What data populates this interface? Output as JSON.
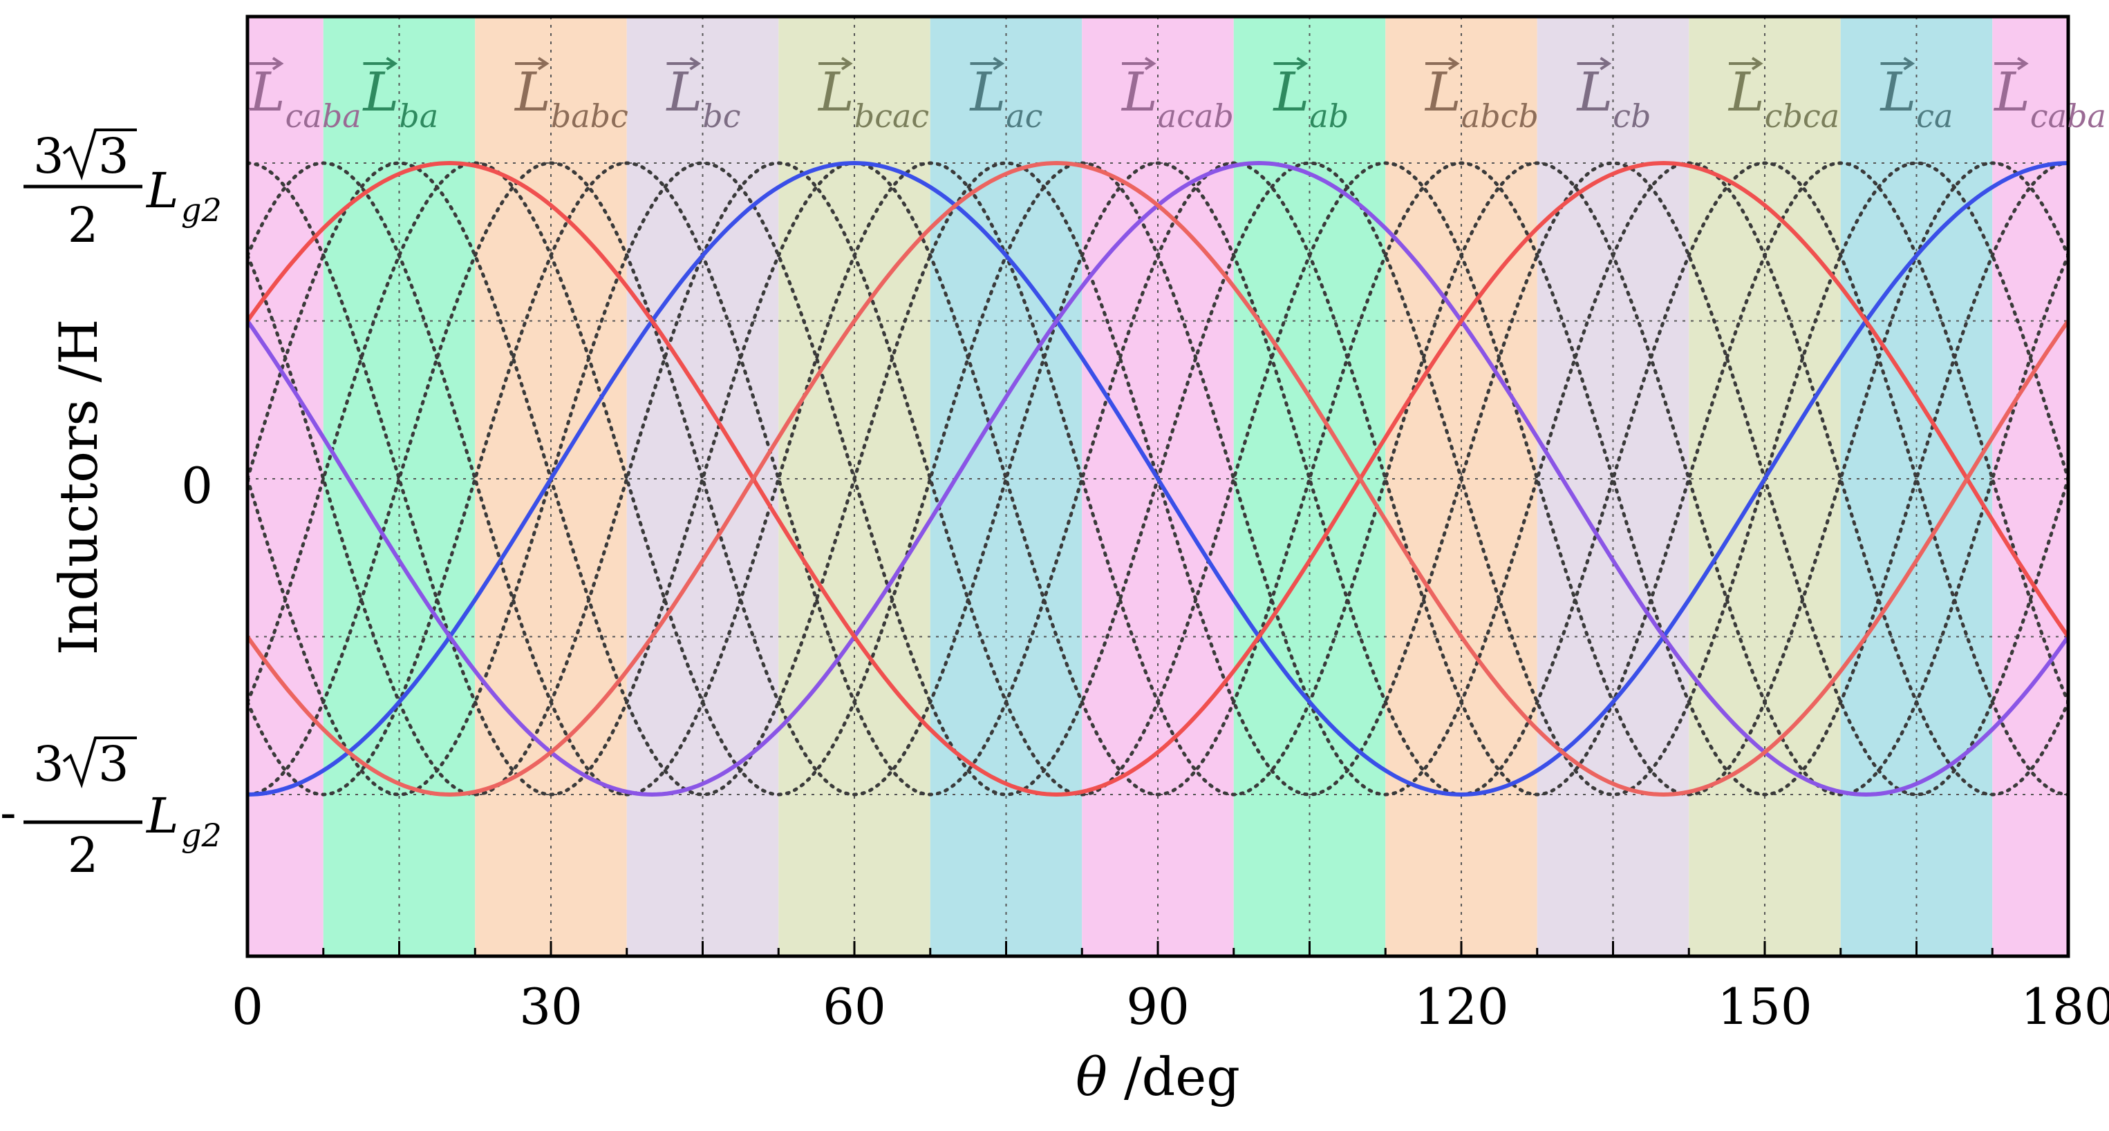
{
  "chart_data": {
    "type": "line",
    "title": "",
    "xlabel_symbol": "θ",
    "xlabel_unit": " /deg",
    "ylabel": "Inductors /H",
    "xlim": [
      0,
      180
    ],
    "ylim": [
      -1.5,
      1.5
    ],
    "x_ticks": [
      {
        "value": 0,
        "label": "0"
      },
      {
        "value": 30,
        "label": "30"
      },
      {
        "value": 60,
        "label": "60"
      },
      {
        "value": 90,
        "label": "90"
      },
      {
        "value": 120,
        "label": "120"
      },
      {
        "value": 150,
        "label": "150"
      },
      {
        "value": 180,
        "label": "180"
      }
    ],
    "y_ticks": {
      "top": {
        "value": 1,
        "coef": "3",
        "radical": "3",
        "den": "2",
        "sym": "L",
        "sub": "g2",
        "sign": ""
      },
      "zero": {
        "value": 0,
        "label": "0"
      },
      "bottom": {
        "value": -1,
        "coef": "3",
        "radical": "3",
        "den": "2",
        "sym": "L",
        "sub": "g2",
        "sign": "-"
      }
    },
    "x_grid": [
      0,
      15,
      30,
      45,
      60,
      75,
      90,
      105,
      120,
      135,
      150,
      165,
      180
    ],
    "y_grid": [
      -1,
      -0.5,
      0,
      0.5,
      1
    ],
    "regions": [
      {
        "start": 0,
        "end": 7.5,
        "label": "caba",
        "fill": "#f9c9f0",
        "text": "#9a6a94"
      },
      {
        "start": 7.5,
        "end": 22.5,
        "label": "ba",
        "fill": "#a8f7d3",
        "text": "#2e8a5f"
      },
      {
        "start": 22.5,
        "end": 37.5,
        "label": "babc",
        "fill": "#fbdcc2",
        "text": "#8d6d58"
      },
      {
        "start": 37.5,
        "end": 52.5,
        "label": "bc",
        "fill": "#e5dcea",
        "text": "#7d6d84"
      },
      {
        "start": 52.5,
        "end": 67.5,
        "label": "bcac",
        "fill": "#e3e8c9",
        "text": "#7b7f5b"
      },
      {
        "start": 67.5,
        "end": 82.5,
        "label": "ac",
        "fill": "#b4e3ea",
        "text": "#4f7c82"
      },
      {
        "start": 82.5,
        "end": 97.5,
        "label": "acab",
        "fill": "#f9c9f0",
        "text": "#9a6a94"
      },
      {
        "start": 97.5,
        "end": 112.5,
        "label": "ab",
        "fill": "#a8f7d3",
        "text": "#2e8a5f"
      },
      {
        "start": 112.5,
        "end": 127.5,
        "label": "abcb",
        "fill": "#fbdcc2",
        "text": "#8d6d58"
      },
      {
        "start": 127.5,
        "end": 142.5,
        "label": "cb",
        "fill": "#e5dcea",
        "text": "#7d6d84"
      },
      {
        "start": 142.5,
        "end": 157.5,
        "label": "cbca",
        "fill": "#e3e8c9",
        "text": "#7b7f5b"
      },
      {
        "start": 157.5,
        "end": 172.5,
        "label": "ca",
        "fill": "#b4e3ea",
        "text": "#4f7c82"
      },
      {
        "start": 172.5,
        "end": 180,
        "label": "caba",
        "fill": "#f9c9f0",
        "text": "#9a6a94"
      }
    ],
    "series": [
      {
        "name": "blue",
        "color": "#3a4fe8",
        "style": "solid",
        "amplitude": 1,
        "period": 120,
        "phase": -90
      },
      {
        "name": "purple",
        "color": "#8a55e6",
        "style": "solid",
        "amplitude": 1,
        "period": 120,
        "phase": 150
      },
      {
        "name": "red",
        "color": "#f0504f",
        "style": "solid",
        "amplitude": 1,
        "period": 120,
        "phase": 30
      },
      {
        "name": "coral",
        "color": "#ec6460",
        "style": "solid",
        "amplitude": 1,
        "period": 120,
        "phase": 210
      },
      {
        "name": "dotted-1",
        "color": "#3a3a3a",
        "style": "dotted",
        "amplitude": 1,
        "period": 60,
        "phase": 0
      },
      {
        "name": "dotted-2",
        "color": "#3a3a3a",
        "style": "dotted",
        "amplitude": 1,
        "period": 60,
        "phase": 90
      },
      {
        "name": "dotted-3",
        "color": "#3a3a3a",
        "style": "dotted",
        "amplitude": 1,
        "period": 60,
        "phase": 180
      },
      {
        "name": "dotted-4",
        "color": "#3a3a3a",
        "style": "dotted",
        "amplitude": 1,
        "period": 60,
        "phase": 270
      },
      {
        "name": "dotted-5",
        "color": "#3a3a3a",
        "style": "dotted",
        "amplitude": 1,
        "period": 60,
        "phase": 45
      },
      {
        "name": "dotted-6",
        "color": "#3a3a3a",
        "style": "dotted",
        "amplitude": 1,
        "period": 60,
        "phase": 135
      },
      {
        "name": "dotted-7",
        "color": "#3a3a3a",
        "style": "dotted",
        "amplitude": 1,
        "period": 60,
        "phase": 225
      },
      {
        "name": "dotted-8",
        "color": "#3a3a3a",
        "style": "dotted",
        "amplitude": 1,
        "period": 60,
        "phase": 315
      }
    ]
  }
}
